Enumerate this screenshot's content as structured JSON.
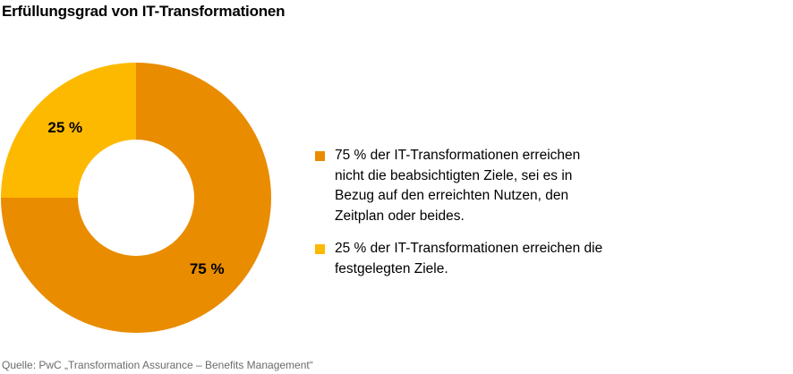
{
  "title": "Erfüllungsgrad von IT-Transformationen",
  "chart_data": {
    "type": "pie",
    "variant": "donut",
    "title": "Erfüllungsgrad von IT-Transformationen",
    "slices": [
      {
        "value": 75,
        "label": "75 %",
        "color": "#e98c00"
      },
      {
        "value": 25,
        "label": "25 %",
        "color": "#fdb900"
      }
    ],
    "legend": {
      "placement": "right",
      "items": [
        {
          "text": "75 % der IT-Transformationen erreichen nicht die beabsichtigten Ziele, sei es in Bezug auf den erreichten Nutzen, den Zeitplan oder beides.",
          "color": "#e98c00"
        },
        {
          "text": "25 % der IT-Transformationen erreichen die festgelegten Ziele.",
          "color": "#fdb900"
        }
      ]
    }
  },
  "source": "Quelle: PwC „Transformation Assurance – Benefits Management“"
}
